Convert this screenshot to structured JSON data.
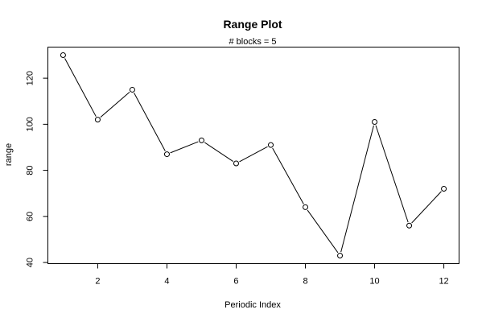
{
  "chart_data": {
    "type": "line",
    "title": "Range Plot",
    "subtitle": "# blocks =  5",
    "xlabel": "Periodic Index",
    "ylabel": "range",
    "x": [
      1,
      2,
      3,
      4,
      5,
      6,
      7,
      8,
      9,
      10,
      11,
      12
    ],
    "y": [
      130,
      102,
      115,
      87,
      93,
      83,
      91,
      64,
      43,
      101,
      56,
      72
    ],
    "x_ticks": [
      2,
      4,
      6,
      8,
      10,
      12
    ],
    "x_tick_labels": [
      "2",
      "4",
      "6",
      "8",
      "10",
      "12"
    ],
    "y_ticks": [
      40,
      60,
      80,
      100,
      120
    ],
    "y_tick_labels": [
      "40",
      "60",
      "80",
      "100",
      "120"
    ],
    "xlim": [
      0.56,
      12.44
    ],
    "ylim": [
      39.5,
      133.5
    ],
    "grid": false,
    "line_color": "#000000",
    "marker": "open-circle"
  }
}
